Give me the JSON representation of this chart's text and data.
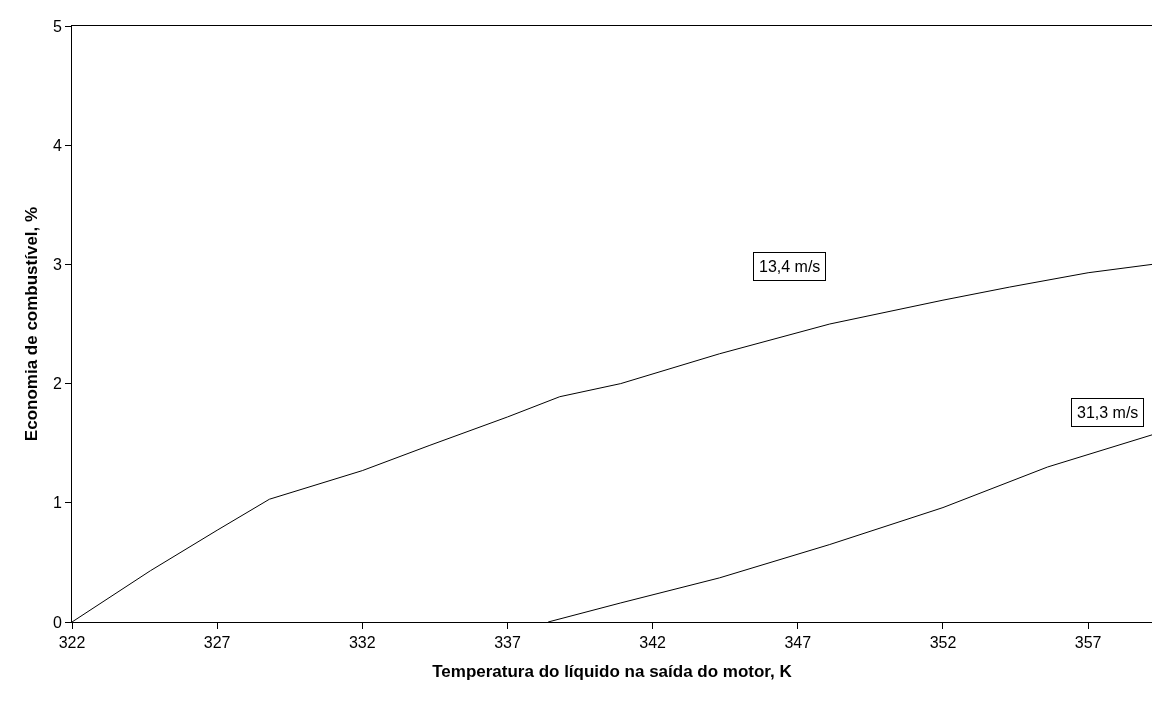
{
  "chart_data": {
    "type": "line",
    "xlabel": "Temperatura do líquido na saída do motor, K",
    "ylabel": "Economia de combustível, %",
    "xlim": [
      322,
      359.2
    ],
    "xticks": [
      322,
      327,
      332,
      337,
      342,
      347,
      352,
      357
    ],
    "ylim": [
      0,
      5
    ],
    "yticks": [
      0,
      1,
      2,
      3,
      4,
      5
    ],
    "grid": false,
    "legend": false,
    "marker": "none",
    "line_style": "solid",
    "series": [
      {
        "name": "13,4 m/s",
        "color": "#000000",
        "x": [
          322,
          324.7,
          327,
          328.8,
          332,
          334.3,
          337,
          338.8,
          340.9,
          344.3,
          348.1,
          352,
          354.3,
          357,
          359.2
        ],
        "values": [
          0,
          0.43,
          0.77,
          1.03,
          1.27,
          1.48,
          1.72,
          1.89,
          2.0,
          2.25,
          2.5,
          2.7,
          2.81,
          2.93,
          3.0
        ]
      },
      {
        "name": "31,3 m/s",
        "color": "#000000",
        "x": [
          338.4,
          340.9,
          344.3,
          348.1,
          352,
          355.6,
          359.2
        ],
        "values": [
          0,
          0.16,
          0.37,
          0.65,
          0.96,
          1.3,
          1.57
        ]
      }
    ]
  }
}
